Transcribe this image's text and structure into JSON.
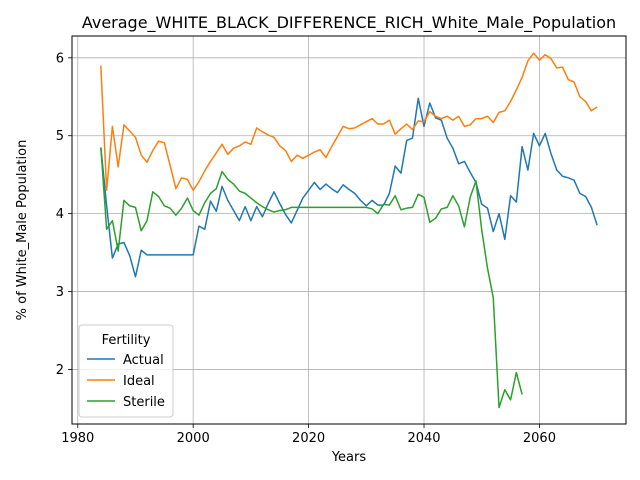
{
  "chart_data": {
    "type": "line",
    "title": "Average_WHITE_BLACK_DIFFERENCE_RICH_White_Male_Population",
    "xlabel": "Years",
    "ylabel": "% of White_Male Population",
    "xlim": [
      1979,
      2075
    ],
    "ylim": [
      1.3,
      6.28
    ],
    "xticks": [
      1980,
      2000,
      2020,
      2040,
      2060
    ],
    "yticks": [
      2,
      3,
      4,
      5,
      6
    ],
    "grid": true,
    "legend": {
      "title": "Fertility",
      "position": "lower-left"
    },
    "series": [
      {
        "name": "Actual",
        "color": "#1f77b4",
        "x": [
          1984,
          1985,
          1986,
          1987,
          1988,
          1989,
          1990,
          1991,
          1992,
          1993,
          1994,
          1995,
          1996,
          1997,
          1998,
          1999,
          2000,
          2001,
          2002,
          2003,
          2004,
          2005,
          2006,
          2007,
          2008,
          2009,
          2010,
          2011,
          2012,
          2013,
          2014,
          2015,
          2016,
          2017,
          2018,
          2019,
          2020,
          2021,
          2022,
          2023,
          2024,
          2025,
          2026,
          2027,
          2028,
          2029,
          2030,
          2031,
          2032,
          2033,
          2034,
          2035,
          2036,
          2037,
          2038,
          2039,
          2040,
          2041,
          2042,
          2043,
          2044,
          2045,
          2046,
          2047,
          2048,
          2049,
          2050,
          2051,
          2052,
          2053,
          2054,
          2055,
          2056,
          2057,
          2058,
          2059,
          2060,
          2061,
          2062,
          2063,
          2064,
          2065,
          2066,
          2067,
          2068,
          2069,
          2070
        ],
        "values": [
          4.85,
          4.1,
          3.43,
          3.61,
          3.63,
          3.46,
          3.19,
          3.53,
          3.47,
          3.47,
          3.47,
          3.47,
          3.47,
          3.47,
          3.47,
          3.47,
          3.47,
          3.84,
          3.8,
          4.16,
          4.03,
          4.35,
          4.17,
          4.04,
          3.91,
          4.09,
          3.91,
          4.09,
          3.96,
          4.13,
          4.28,
          4.13,
          3.99,
          3.88,
          4.04,
          4.2,
          4.3,
          4.4,
          4.31,
          4.38,
          4.32,
          4.27,
          4.37,
          4.31,
          4.26,
          4.17,
          4.1,
          4.17,
          4.11,
          4.11,
          4.26,
          4.61,
          4.52,
          4.94,
          4.97,
          5.48,
          5.12,
          5.42,
          5.23,
          5.2,
          4.97,
          4.84,
          4.64,
          4.67,
          4.53,
          4.4,
          4.12,
          4.07,
          3.77,
          4.0,
          3.67,
          4.23,
          4.15,
          4.86,
          4.56,
          5.03,
          4.87,
          5.03,
          4.77,
          4.56,
          4.48,
          4.46,
          4.43,
          4.26,
          4.22,
          4.08,
          3.85
        ]
      },
      {
        "name": "Ideal",
        "color": "#ff7f0e",
        "x": [
          1984,
          1985,
          1986,
          1987,
          1988,
          1989,
          1990,
          1991,
          1992,
          1993,
          1994,
          1995,
          1996,
          1997,
          1998,
          1999,
          2000,
          2001,
          2002,
          2003,
          2004,
          2005,
          2006,
          2007,
          2008,
          2009,
          2010,
          2011,
          2012,
          2013,
          2014,
          2015,
          2016,
          2017,
          2018,
          2019,
          2020,
          2021,
          2022,
          2023,
          2024,
          2025,
          2026,
          2027,
          2028,
          2029,
          2030,
          2031,
          2032,
          2033,
          2034,
          2035,
          2036,
          2037,
          2038,
          2039,
          2040,
          2041,
          2042,
          2043,
          2044,
          2045,
          2046,
          2047,
          2048,
          2049,
          2050,
          2051,
          2052,
          2053,
          2054,
          2055,
          2056,
          2057,
          2058,
          2059,
          2060,
          2061,
          2062,
          2063,
          2064,
          2065,
          2066,
          2067,
          2068,
          2069,
          2070
        ],
        "values": [
          5.9,
          4.3,
          5.12,
          4.6,
          5.14,
          5.06,
          4.98,
          4.75,
          4.66,
          4.81,
          4.93,
          4.91,
          4.62,
          4.32,
          4.46,
          4.44,
          4.3,
          4.41,
          4.55,
          4.67,
          4.78,
          4.89,
          4.76,
          4.84,
          4.87,
          4.92,
          4.89,
          5.1,
          5.05,
          5.01,
          4.98,
          4.87,
          4.81,
          4.67,
          4.75,
          4.71,
          4.75,
          4.79,
          4.82,
          4.72,
          4.86,
          4.99,
          5.12,
          5.09,
          5.1,
          5.14,
          5.18,
          5.22,
          5.15,
          5.15,
          5.2,
          5.02,
          5.09,
          5.15,
          5.08,
          5.19,
          5.18,
          5.31,
          5.25,
          5.22,
          5.25,
          5.2,
          5.25,
          5.12,
          5.14,
          5.22,
          5.22,
          5.25,
          5.17,
          5.3,
          5.32,
          5.44,
          5.59,
          5.75,
          5.96,
          6.06,
          5.97,
          6.04,
          5.99,
          5.87,
          5.88,
          5.72,
          5.69,
          5.5,
          5.44,
          5.32,
          5.37
        ]
      },
      {
        "name": "Sterile",
        "color": "#2ca02c",
        "x": [
          1984,
          1985,
          1986,
          1987,
          1988,
          1989,
          1990,
          1991,
          1992,
          1993,
          1994,
          1995,
          1996,
          1997,
          1998,
          1999,
          2000,
          2001,
          2002,
          2003,
          2004,
          2005,
          2006,
          2007,
          2008,
          2009,
          2010,
          2011,
          2012,
          2013,
          2014,
          2015,
          2016,
          2017,
          2018,
          2019,
          2020,
          2021,
          2022,
          2023,
          2024,
          2025,
          2026,
          2027,
          2028,
          2029,
          2030,
          2031,
          2032,
          2033,
          2034,
          2035,
          2036,
          2037,
          2038,
          2039,
          2040,
          2041,
          2042,
          2043,
          2044,
          2045,
          2046,
          2047,
          2048,
          2049,
          2050,
          2051,
          2052,
          2053,
          2054,
          2055,
          2056,
          2057,
          2058
        ],
        "values": [
          4.85,
          3.8,
          3.91,
          3.52,
          4.17,
          4.1,
          4.08,
          3.78,
          3.91,
          4.28,
          4.22,
          4.1,
          4.07,
          3.98,
          4.07,
          4.2,
          4.04,
          3.98,
          4.14,
          4.26,
          4.32,
          4.54,
          4.44,
          4.38,
          4.29,
          4.26,
          4.2,
          4.14,
          4.09,
          4.05,
          4.02,
          4.04,
          4.05,
          4.08,
          4.08,
          4.08,
          4.08,
          4.08,
          4.08,
          4.08,
          4.08,
          4.08,
          4.08,
          4.08,
          4.08,
          4.08,
          4.08,
          4.06,
          4.0,
          4.12,
          4.11,
          4.23,
          4.05,
          4.07,
          4.08,
          4.25,
          4.21,
          3.89,
          3.94,
          4.06,
          4.08,
          4.23,
          4.1,
          3.83,
          4.21,
          4.42,
          3.79,
          3.3,
          2.92,
          1.51,
          1.74,
          1.61,
          1.96,
          1.68,
          null
        ]
      }
    ]
  }
}
